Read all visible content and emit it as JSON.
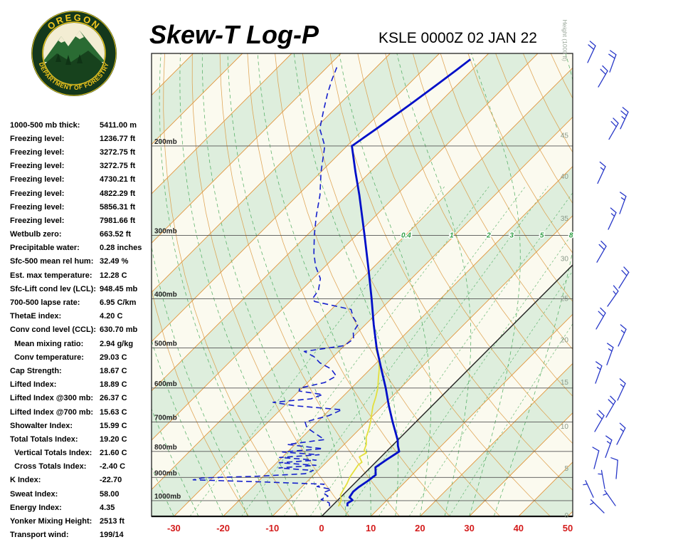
{
  "header": {
    "title": "Skew-T Log-P",
    "station": "KSLE 0000Z 02 JAN 22"
  },
  "logo": {
    "arc_top": "OREGON",
    "arc_bottom": "DEPARTMENT OF FORESTRY"
  },
  "indices": [
    {
      "label": "1000-500 mb thick:",
      "value": "5411.00 m"
    },
    {
      "label": "Freezing level:",
      "value": "1236.77 ft"
    },
    {
      "label": "Freezing level:",
      "value": "3272.75 ft"
    },
    {
      "label": "Freezing level:",
      "value": "3272.75 ft"
    },
    {
      "label": "Freezing level:",
      "value": "4730.21 ft"
    },
    {
      "label": "Freezing level:",
      "value": "4822.29 ft"
    },
    {
      "label": "Freezing level:",
      "value": "5856.31 ft"
    },
    {
      "label": "Freezing level:",
      "value": "7981.66 ft"
    },
    {
      "label": "Wetbulb zero:",
      "value": "663.52 ft"
    },
    {
      "label": "Precipitable water:",
      "value": "0.28 inches"
    },
    {
      "label": "Sfc-500 mean rel hum:",
      "value": "32.49 %"
    },
    {
      "label": "Est. max temperature:",
      "value": "12.28 C"
    },
    {
      "label": "Sfc-Lift cond lev (LCL):",
      "value": "948.45 mb"
    },
    {
      "label": "700-500 lapse rate:",
      "value": "6.95 C/km"
    },
    {
      "label": "ThetaE index:",
      "value": "4.20 C"
    },
    {
      "label": "Conv cond level (CCL):",
      "value": "630.70 mb"
    },
    {
      "label": "  Mean mixing ratio:",
      "value": "2.94 g/kg"
    },
    {
      "label": "  Conv temperature:",
      "value": "29.03 C"
    },
    {
      "label": "Cap Strength:",
      "value": "18.67 C"
    },
    {
      "label": "Lifted Index:",
      "value": "18.89 C"
    },
    {
      "label": "Lifted Index @300 mb:",
      "value": "26.37 C"
    },
    {
      "label": "Lifted Index @700 mb:",
      "value": "15.63 C"
    },
    {
      "label": "Showalter Index:",
      "value": "15.99 C"
    },
    {
      "label": "Total Totals Index:",
      "value": "19.20 C"
    },
    {
      "label": "  Vertical Totals Index:",
      "value": "21.60 C"
    },
    {
      "label": "  Cross Totals Index:",
      "value": "-2.40 C"
    },
    {
      "label": "K Index:",
      "value": "-22.70"
    },
    {
      "label": "Sweat Index:",
      "value": "58.00"
    },
    {
      "label": "Energy Index:",
      "value": "4.35"
    },
    {
      "label": "Yonker Mixing Height:",
      "value": "2513 ft"
    },
    {
      "label": "Transport wind:",
      "value": "199/14"
    }
  ],
  "chart_data": {
    "type": "line",
    "subtype": "skew-t-log-p",
    "title": "Skew-T Log-P",
    "station": "KSLE 0000Z 02 JAN 22",
    "temp_axis": {
      "unit": "C",
      "ticks": [
        -30,
        -20,
        -10,
        0,
        10,
        20,
        30,
        40,
        50
      ],
      "color": "#d41c1c"
    },
    "pressure_levels": [
      200,
      300,
      400,
      500,
      600,
      700,
      800,
      900,
      1000
    ],
    "pressure_unit": "mb",
    "height_axis": {
      "label": "Height (1000 ft)",
      "ticks": [
        {
          "label": "45",
          "p": 191
        },
        {
          "label": "40",
          "p": 230
        },
        {
          "label": "35",
          "p": 278
        },
        {
          "label": "30",
          "p": 334
        },
        {
          "label": "25",
          "p": 400
        },
        {
          "label": "20",
          "p": 483
        },
        {
          "label": "15",
          "p": 585
        },
        {
          "label": "10",
          "p": 715
        },
        {
          "label": "5",
          "p": 865
        },
        {
          "label": "0",
          "p": 1070
        }
      ]
    },
    "mixing_ratio": {
      "values": [
        0.4,
        1,
        2,
        3,
        5,
        8
      ],
      "label_pressure": 300
    },
    "series": [
      {
        "name": "temperature",
        "color": "#000fc8",
        "style": "solid",
        "points": [
          [
            1026,
            3.2
          ],
          [
            1012,
            2.6
          ],
          [
            998,
            3.0
          ],
          [
            985,
            1.8
          ],
          [
            960,
            1.4
          ],
          [
            940,
            1.6
          ],
          [
            915,
            2.2
          ],
          [
            890,
            2.6
          ],
          [
            860,
            1.0
          ],
          [
            830,
            1.7
          ],
          [
            800,
            2.6
          ],
          [
            780,
            1.2
          ],
          [
            760,
            0.0
          ],
          [
            700,
            -4.7
          ],
          [
            650,
            -8.8
          ],
          [
            600,
            -13.0
          ],
          [
            550,
            -17.8
          ],
          [
            500,
            -23.0
          ],
          [
            450,
            -28.3
          ],
          [
            400,
            -34.0
          ],
          [
            350,
            -40.6
          ],
          [
            300,
            -48.3
          ],
          [
            250,
            -57.5
          ],
          [
            225,
            -63.0
          ],
          [
            200,
            -69.0
          ],
          [
            185,
            -67.5
          ],
          [
            165,
            -65.5
          ],
          [
            150,
            -64.0
          ],
          [
            142,
            -63.2
          ],
          [
            135,
            -62.5
          ]
        ]
      },
      {
        "name": "dewpoint",
        "color": "#1520cc",
        "style": "dashed",
        "points": [
          [
            1026,
            -0.4
          ],
          [
            1010,
            -1.2
          ],
          [
            995,
            -3.5
          ],
          [
            980,
            -2.8
          ],
          [
            965,
            -4.5
          ],
          [
            950,
            -3.5
          ],
          [
            938,
            -7.0
          ],
          [
            928,
            -6.0
          ],
          [
            918,
            -20.0
          ],
          [
            910,
            -33.5
          ],
          [
            902,
            -32.0
          ],
          [
            895,
            -21.0
          ],
          [
            885,
            -12.0
          ],
          [
            872,
            -11.0
          ],
          [
            862,
            -18.5
          ],
          [
            852,
            -11.5
          ],
          [
            842,
            -19.5
          ],
          [
            832,
            -12.5
          ],
          [
            822,
            -20.5
          ],
          [
            812,
            -13.0
          ],
          [
            802,
            -21.0
          ],
          [
            790,
            -13.5
          ],
          [
            775,
            -21.5
          ],
          [
            758,
            -15.0
          ],
          [
            738,
            -18.0
          ],
          [
            718,
            -21.0
          ],
          [
            700,
            -22.5
          ],
          [
            680,
            -19.0
          ],
          [
            662,
            -17.5
          ],
          [
            650,
            -28.0
          ],
          [
            640,
            -33.0
          ],
          [
            630,
            -26.0
          ],
          [
            618,
            -24.5
          ],
          [
            608,
            -30.0
          ],
          [
            600,
            -30.5
          ],
          [
            585,
            -26.5
          ],
          [
            568,
            -25.5
          ],
          [
            550,
            -28.0
          ],
          [
            535,
            -31.5
          ],
          [
            520,
            -34.0
          ],
          [
            508,
            -37.0
          ],
          [
            495,
            -30.0
          ],
          [
            480,
            -29.5
          ],
          [
            465,
            -31.0
          ],
          [
            450,
            -31.5
          ],
          [
            435,
            -34.0
          ],
          [
            420,
            -36.0
          ],
          [
            405,
            -45.0
          ],
          [
            400,
            -46.0
          ],
          [
            385,
            -46.5
          ],
          [
            365,
            -48.5
          ],
          [
            345,
            -52.0
          ],
          [
            325,
            -55.0
          ],
          [
            300,
            -58.5
          ],
          [
            275,
            -62.0
          ],
          [
            250,
            -65.5
          ],
          [
            225,
            -70.0
          ],
          [
            200,
            -74.5
          ],
          [
            185,
            -79.0
          ],
          [
            170,
            -82.0
          ],
          [
            158,
            -84.5
          ],
          [
            148,
            -86.5
          ],
          [
            140,
            -88.0
          ]
        ]
      },
      {
        "name": "wetbulb",
        "color": "#e3df3c",
        "style": "solid",
        "points": [
          [
            1026,
            1.4
          ],
          [
            1000,
            0.8
          ],
          [
            975,
            -0.5
          ],
          [
            950,
            -1.0
          ],
          [
            925,
            -1.5
          ],
          [
            900,
            -2.2
          ],
          [
            875,
            -2.6
          ],
          [
            850,
            -3.0
          ],
          [
            840,
            -2.8
          ],
          [
            820,
            -4.4
          ],
          [
            805,
            -3.8
          ],
          [
            795,
            -4.8
          ],
          [
            775,
            -5.5
          ],
          [
            750,
            -7.0
          ],
          [
            725,
            -8.0
          ],
          [
            700,
            -9.2
          ],
          [
            675,
            -10.6
          ],
          [
            650,
            -12.0
          ],
          [
            625,
            -13.2
          ],
          [
            600,
            -14.6
          ],
          [
            575,
            -16.4
          ],
          [
            550,
            -18.2
          ],
          [
            525,
            -20.4
          ],
          [
            500,
            -23.2
          ],
          [
            490,
            -24.0
          ]
        ]
      }
    ],
    "wind_barbs": [
      {
        "p": 137,
        "spd": 22,
        "dir": 205
      },
      {
        "p": 143,
        "spd": 20,
        "dir": 200
      },
      {
        "p": 153,
        "spd": 20,
        "dir": 210
      },
      {
        "p": 185,
        "spd": 25,
        "dir": 205
      },
      {
        "p": 194,
        "spd": 20,
        "dir": 210
      },
      {
        "p": 237,
        "spd": 15,
        "dir": 205
      },
      {
        "p": 272,
        "spd": 15,
        "dir": 200
      },
      {
        "p": 292,
        "spd": 15,
        "dir": 205
      },
      {
        "p": 339,
        "spd": 20,
        "dir": 210
      },
      {
        "p": 381,
        "spd": 20,
        "dir": 212
      },
      {
        "p": 414,
        "spd": 18,
        "dir": 215
      },
      {
        "p": 459,
        "spd": 20,
        "dir": 210
      },
      {
        "p": 496,
        "spd": 15,
        "dir": 205
      },
      {
        "p": 540,
        "spd": 15,
        "dir": 200
      },
      {
        "p": 587,
        "spd": 18,
        "dir": 200
      },
      {
        "p": 634,
        "spd": 15,
        "dir": 205
      },
      {
        "p": 685,
        "spd": 22,
        "dir": 210
      },
      {
        "p": 731,
        "spd": 20,
        "dir": 210
      },
      {
        "p": 775,
        "spd": 18,
        "dir": 207
      },
      {
        "p": 822,
        "spd": 15,
        "dir": 200
      },
      {
        "p": 865,
        "spd": 12,
        "dir": 195
      },
      {
        "p": 905,
        "spd": 10,
        "dir": 185
      },
      {
        "p": 947,
        "spd": 8,
        "dir": 170
      },
      {
        "p": 985,
        "spd": 7,
        "dir": 155
      },
      {
        "p": 1023,
        "spd": 5,
        "dir": 145
      },
      {
        "p": 1057,
        "spd": 5,
        "dir": 135
      }
    ],
    "colors": {
      "band_green": "#deeedd",
      "band_cream": "#fbfaef",
      "isotherm": "#e2953c",
      "dry_adiabat": "#dc9a42",
      "moist_green": "#2f9e44",
      "zero_line": "#222222",
      "pressure_line": "#555555",
      "barb": "#2838c8",
      "height_label": "#8a9a8a",
      "temp_label": "#d41c1c"
    }
  }
}
